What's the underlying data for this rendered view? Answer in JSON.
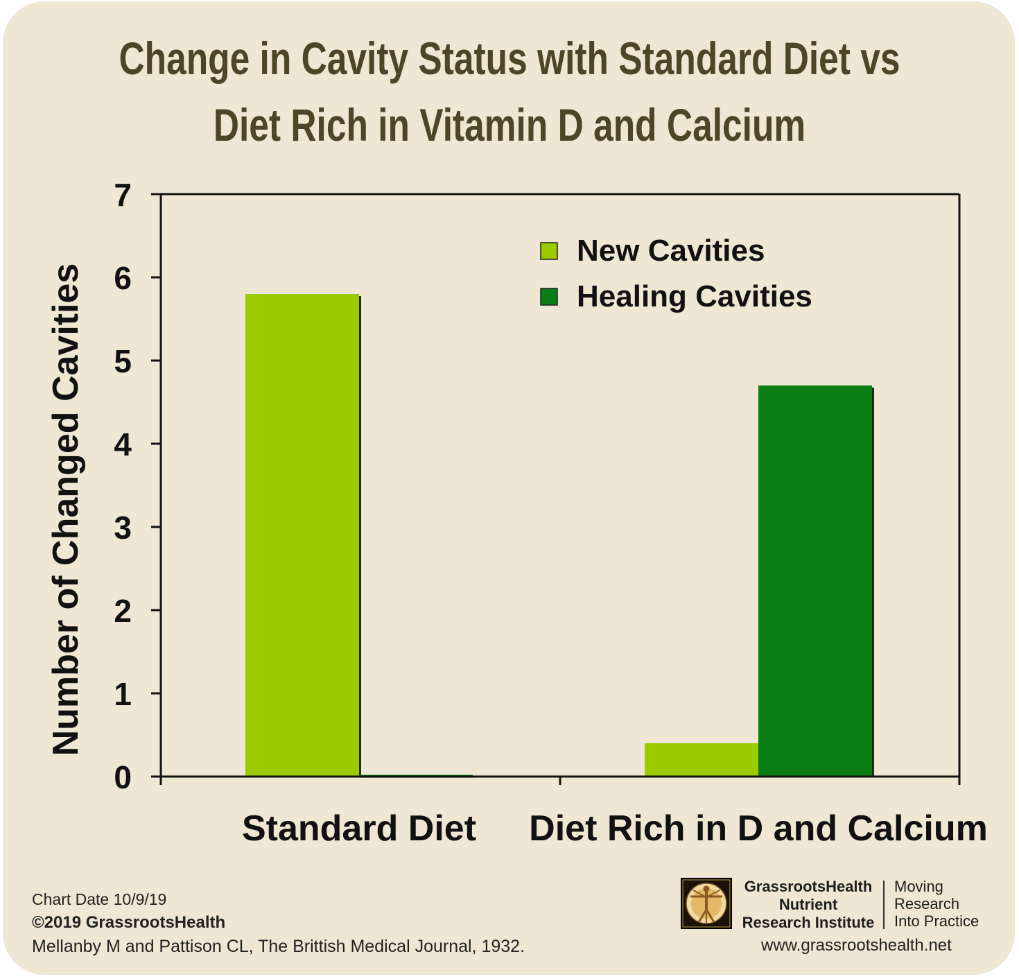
{
  "chart_data": {
    "type": "bar",
    "title": "Change in Cavity Status with Standard Diet vs Diet Rich in Vitamin D and Calcium",
    "title_lines": [
      "Change in Cavity Status with Standard Diet vs",
      "Diet Rich in Vitamin D and Calcium"
    ],
    "xlabel": "",
    "ylabel": "Number of Changed Cavities",
    "categories": [
      "Standard Diet",
      "Diet Rich in D and Calcium"
    ],
    "series": [
      {
        "name": "New Cavities",
        "values": [
          5.8,
          0.4
        ],
        "color": "#9bcb00"
      },
      {
        "name": "Healing Cavities",
        "values": [
          0.02,
          4.7
        ],
        "color": "#0a7d14"
      }
    ],
    "ylim": [
      0,
      7
    ],
    "yticks": [
      0,
      1,
      2,
      3,
      4,
      5,
      6,
      7
    ],
    "grid": false,
    "legend_position": "top-right"
  },
  "footer": {
    "chart_date": "Chart Date 10/9/19",
    "copyright": "©2019 GrassrootsHealth",
    "citation": "Mellanby M and Pattison CL, The Brittish Medical Journal, 1932.",
    "org_name": [
      "GrassrootsHealth",
      "Nutrient",
      "Research Institute"
    ],
    "tagline": [
      "Moving",
      "Research",
      "Into Practice"
    ],
    "website": "www.grassrootshealth.net",
    "logo_icon": "vitruvian-man-logo-icon"
  }
}
